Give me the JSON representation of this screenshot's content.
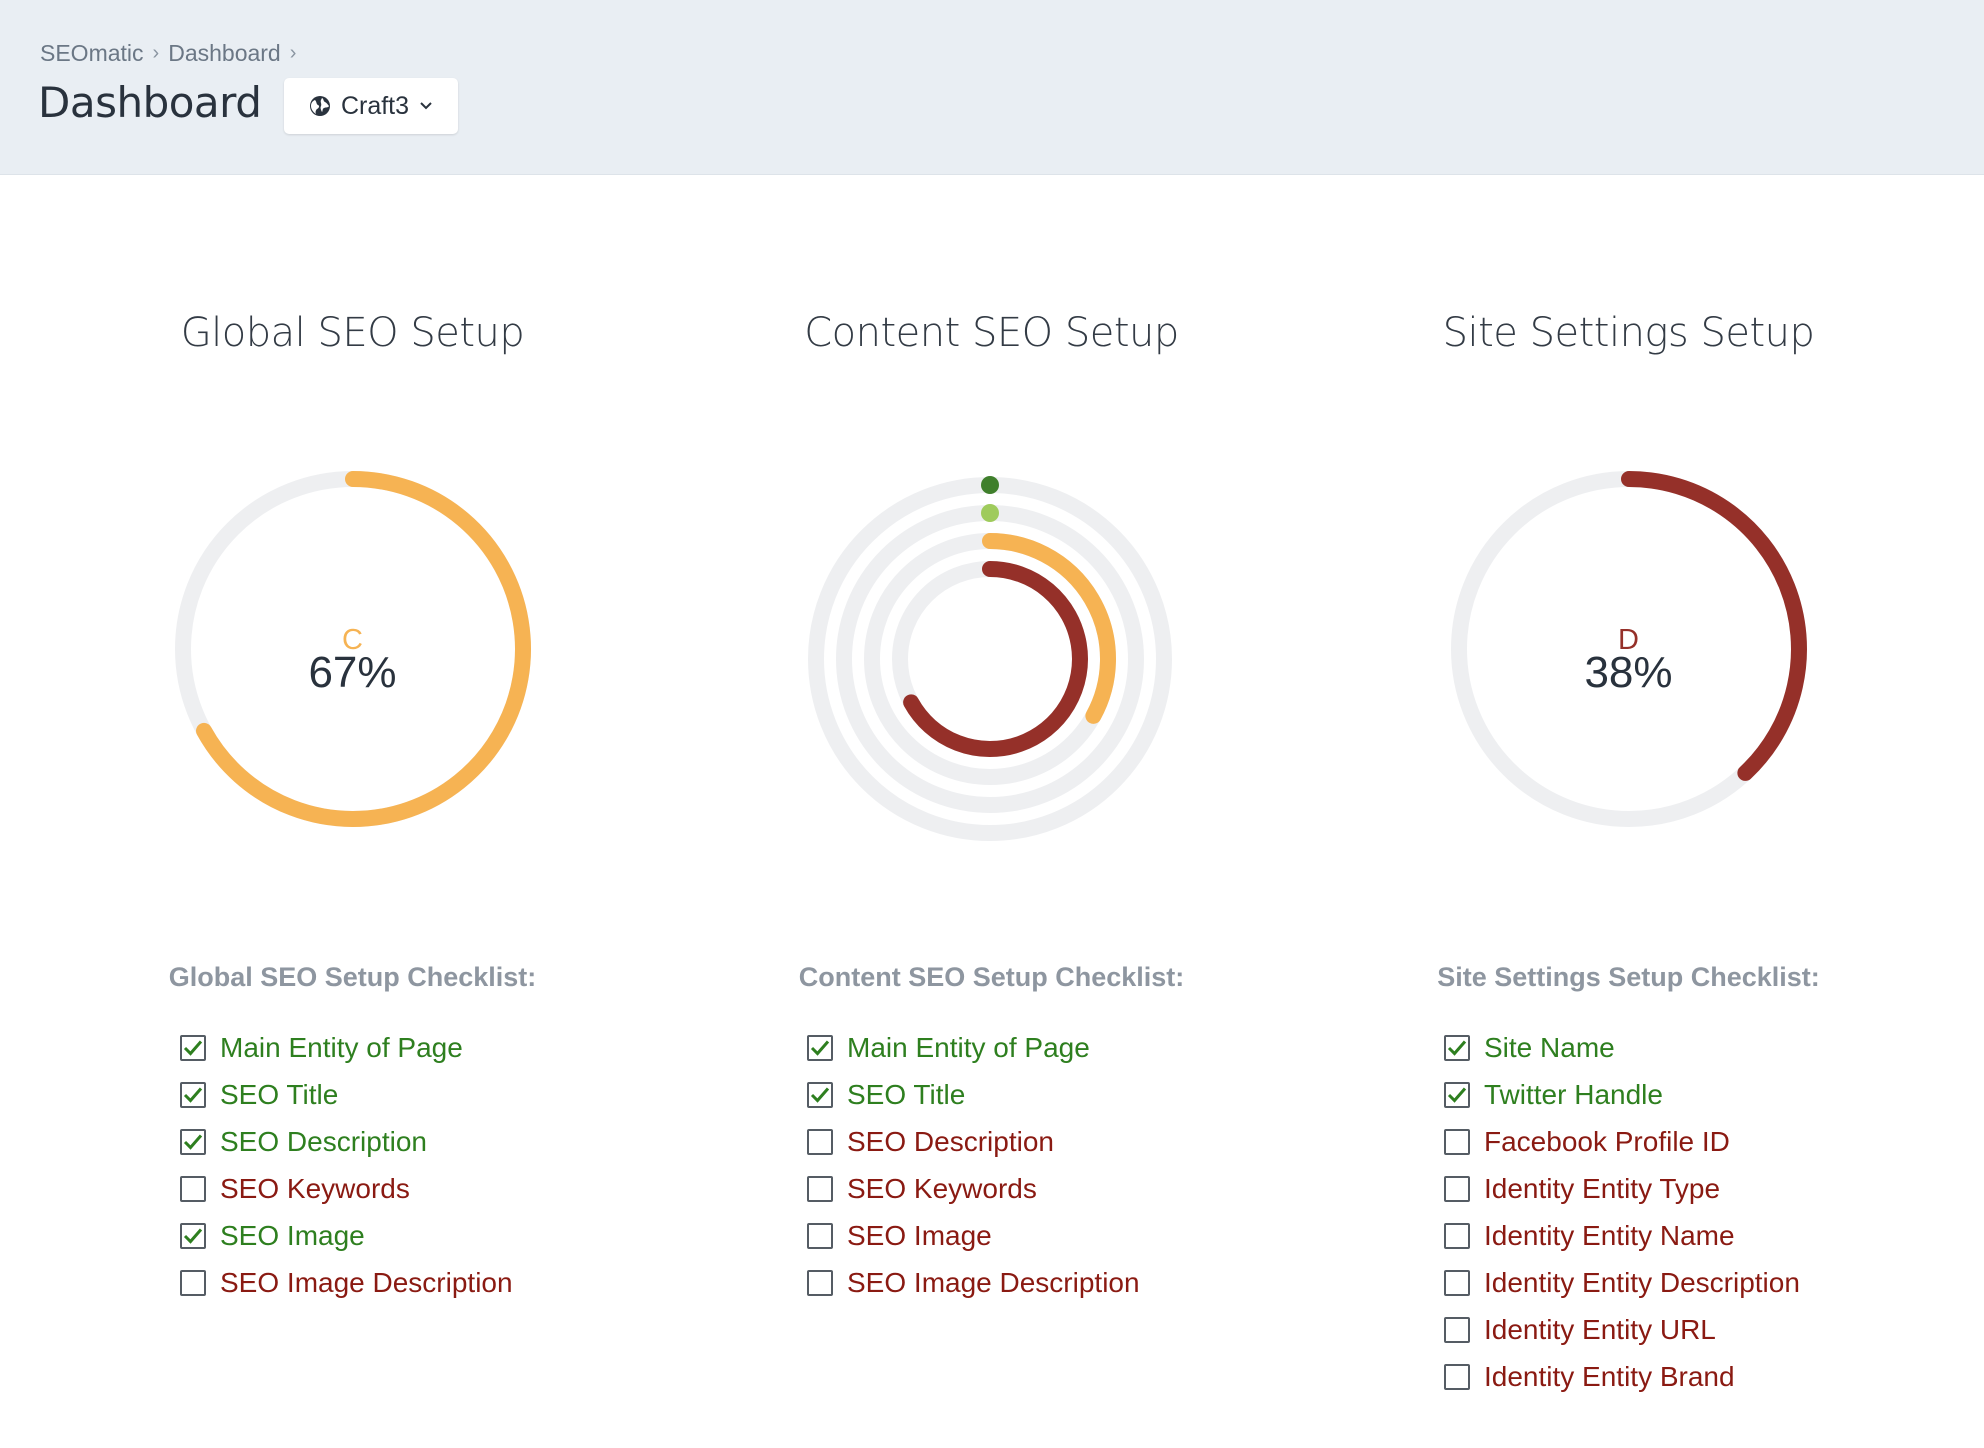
{
  "header": {
    "breadcrumb": [
      "SEOmatic",
      "Dashboard"
    ],
    "title": "Dashboard",
    "site_button": {
      "label": "Craft3",
      "icon": "globe-icon"
    }
  },
  "colors": {
    "orange": "#f6b353",
    "dark_red": "#953029",
    "green": "#2e7f1f",
    "light_green": "#9fcb5c",
    "track": "#eeeff1"
  },
  "columns": [
    {
      "title": "Global SEO Setup",
      "gauge": {
        "type": "single",
        "grade": "C",
        "percent_label": "67%",
        "value": 67,
        "color": "#f6b353"
      },
      "checklist_title": "Global SEO Setup Checklist:",
      "items": [
        {
          "label": "Main Entity of Page",
          "checked": true
        },
        {
          "label": "SEO Title",
          "checked": true
        },
        {
          "label": "SEO Description",
          "checked": true
        },
        {
          "label": "SEO Keywords",
          "checked": false
        },
        {
          "label": "SEO Image",
          "checked": true
        },
        {
          "label": "SEO Image Description",
          "checked": false
        }
      ]
    },
    {
      "title": "Content SEO Setup",
      "gauge": {
        "type": "multi",
        "rings": [
          {
            "value": 0,
            "color": "#3f7f2c"
          },
          {
            "value": 0,
            "color": "#9fcb5c"
          },
          {
            "value": 33,
            "color": "#f6b353"
          },
          {
            "value": 67,
            "color": "#953029"
          }
        ]
      },
      "checklist_title": "Content SEO Setup Checklist:",
      "items": [
        {
          "label": "Main Entity of Page",
          "checked": true
        },
        {
          "label": "SEO Title",
          "checked": true
        },
        {
          "label": "SEO Description",
          "checked": false
        },
        {
          "label": "SEO Keywords",
          "checked": false
        },
        {
          "label": "SEO Image",
          "checked": false
        },
        {
          "label": "SEO Image Description",
          "checked": false
        }
      ]
    },
    {
      "title": "Site Settings Setup",
      "gauge": {
        "type": "single",
        "grade": "D",
        "percent_label": "38%",
        "value": 38,
        "color": "#953029"
      },
      "checklist_title": "Site Settings Setup Checklist:",
      "items": [
        {
          "label": "Site Name",
          "checked": true
        },
        {
          "label": "Twitter Handle",
          "checked": true
        },
        {
          "label": "Facebook Profile ID",
          "checked": false
        },
        {
          "label": "Identity Entity Type",
          "checked": false
        },
        {
          "label": "Identity Entity Name",
          "checked": false
        },
        {
          "label": "Identity Entity Description",
          "checked": false
        },
        {
          "label": "Identity Entity URL",
          "checked": false
        },
        {
          "label": "Identity Entity Brand",
          "checked": false
        }
      ]
    }
  ]
}
